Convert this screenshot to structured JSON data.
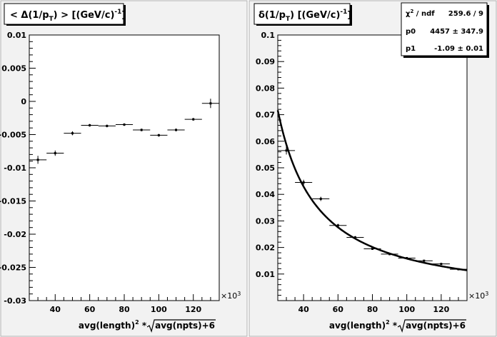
{
  "chart_data": [
    {
      "type": "scatter",
      "title_prefix": "< Δ(1/p",
      "title_sub": "T",
      "title_suffix": ") >  [(GeV/c)",
      "title_sup": "-1",
      "title_close": "]",
      "xlabel_main": "avg(length)",
      "xlabel_sup": "2",
      "xlabel_star": " *",
      "xlabel_sqrt_arg": "avg(npts)+6",
      "x_exponent_base": "×10",
      "x_exponent_power": "3",
      "xlim": [
        25,
        135
      ],
      "ylim": [
        -0.03,
        0.01
      ],
      "xticks": [
        40,
        60,
        80,
        100,
        120
      ],
      "xtick_labels": [
        "40",
        "60",
        "80",
        "100",
        "120"
      ],
      "yticks": [
        0.01,
        0.005,
        0,
        -0.005,
        -0.01,
        -0.015,
        -0.02,
        -0.025,
        -0.03
      ],
      "ytick_labels": [
        "0.01",
        "0.005",
        "0",
        "-0.005",
        "-0.01",
        "-0.015",
        "-0.02",
        "-0.025",
        "-0.03"
      ],
      "points": [
        {
          "x": 30,
          "y": -0.0088,
          "xerr": 5,
          "yerr": 0.0006
        },
        {
          "x": 40,
          "y": -0.0078,
          "xerr": 5,
          "yerr": 0.0004
        },
        {
          "x": 50,
          "y": -0.0048,
          "xerr": 5,
          "yerr": 0.0003
        },
        {
          "x": 60,
          "y": -0.0036,
          "xerr": 5,
          "yerr": 0.0002
        },
        {
          "x": 70,
          "y": -0.0037,
          "xerr": 5,
          "yerr": 0.0002
        },
        {
          "x": 80,
          "y": -0.0035,
          "xerr": 5,
          "yerr": 0.0002
        },
        {
          "x": 90,
          "y": -0.0043,
          "xerr": 5,
          "yerr": 0.0002
        },
        {
          "x": 100,
          "y": -0.0051,
          "xerr": 5,
          "yerr": 0.0002
        },
        {
          "x": 110,
          "y": -0.0043,
          "xerr": 5,
          "yerr": 0.0002
        },
        {
          "x": 120,
          "y": -0.0027,
          "xerr": 5,
          "yerr": 0.0002
        },
        {
          "x": 130,
          "y": -0.0003,
          "xerr": 5,
          "yerr": 0.0007
        }
      ]
    },
    {
      "type": "scatter",
      "title_prefix": "δ(1/p",
      "title_sub": "T",
      "title_suffix": ")  [(GeV/c)",
      "title_sup": "-1",
      "title_close": "]",
      "xlabel_main": "avg(length)",
      "xlabel_sup": "2",
      "xlabel_star": " *",
      "xlabel_sqrt_arg": "avg(npts)+6",
      "x_exponent_base": "×10",
      "x_exponent_power": "3",
      "xlim": [
        25,
        135
      ],
      "ylim": [
        0,
        0.1
      ],
      "xticks": [
        40,
        60,
        80,
        100,
        120
      ],
      "xtick_labels": [
        "40",
        "60",
        "80",
        "100",
        "120"
      ],
      "yticks": [
        0.1,
        0.09,
        0.08,
        0.07,
        0.06,
        0.05,
        0.04,
        0.03,
        0.02,
        0.01
      ],
      "ytick_labels": [
        "0.1",
        "0.09",
        "0.08",
        "0.07",
        "0.06",
        "0.05",
        "0.04",
        "0.03",
        "0.02",
        "0.01"
      ],
      "points": [
        {
          "x": 30,
          "y": 0.0565,
          "xerr": 5,
          "yerr": 0.0015
        },
        {
          "x": 40,
          "y": 0.0445,
          "xerr": 5,
          "yerr": 0.001
        },
        {
          "x": 50,
          "y": 0.0383,
          "xerr": 5,
          "yerr": 0.0008
        },
        {
          "x": 60,
          "y": 0.0283,
          "xerr": 5,
          "yerr": 0.0006
        },
        {
          "x": 70,
          "y": 0.0238,
          "xerr": 5,
          "yerr": 0.0005
        },
        {
          "x": 80,
          "y": 0.0195,
          "xerr": 5,
          "yerr": 0.0004
        },
        {
          "x": 90,
          "y": 0.0175,
          "xerr": 5,
          "yerr": 0.0004
        },
        {
          "x": 100,
          "y": 0.016,
          "xerr": 5,
          "yerr": 0.0003
        },
        {
          "x": 110,
          "y": 0.015,
          "xerr": 5,
          "yerr": 0.0003
        },
        {
          "x": 120,
          "y": 0.0138,
          "xerr": 5,
          "yerr": 0.0003
        },
        {
          "x": 130,
          "y": 0.0118,
          "xerr": 5,
          "yerr": 0.0003
        }
      ],
      "fit": {
        "p0": 4457,
        "p1": -1.09,
        "x_scale": 1000
      },
      "stats": {
        "chi2_label_main": "χ",
        "chi2_label_sup": "2",
        "chi2_label_rest": " / ndf",
        "chi2_value": "259.6 / 9",
        "p0_label": "p0",
        "p0_value": "4457 ± 347.9",
        "p1_label": "p1",
        "p1_value": "-1.09 ± 0.01"
      }
    }
  ]
}
